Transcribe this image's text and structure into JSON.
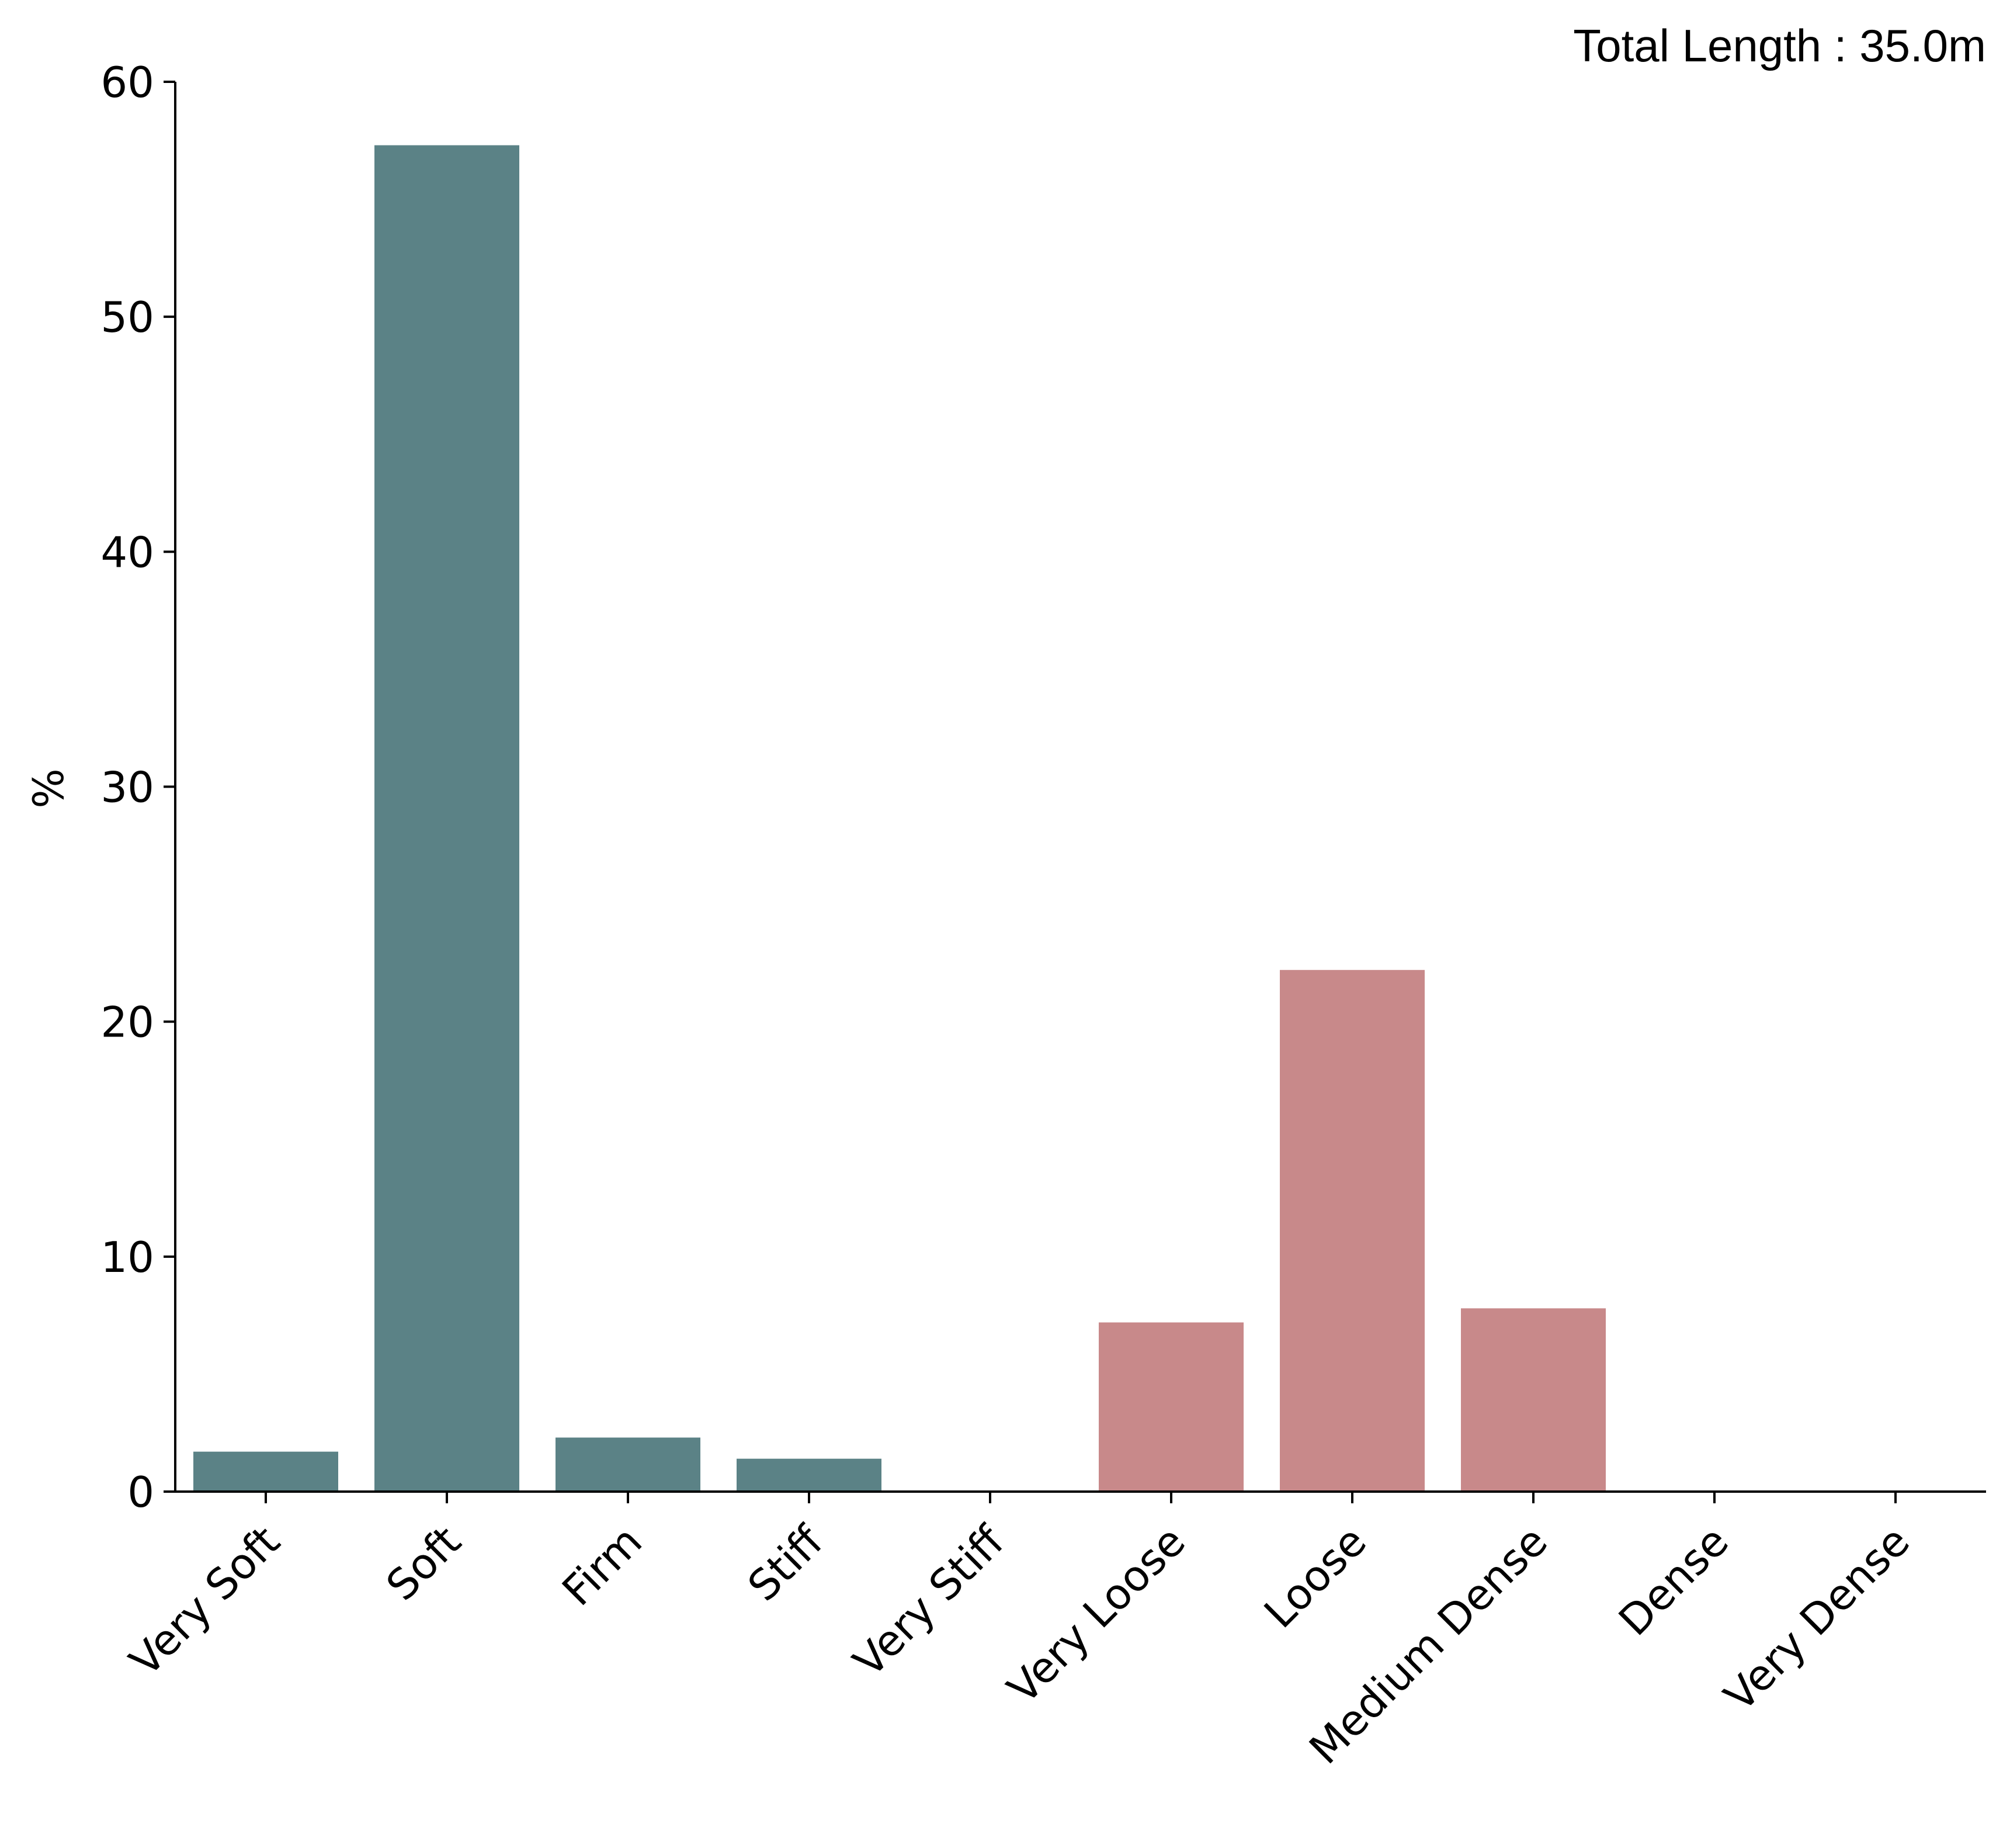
{
  "chart_data": {
    "type": "bar",
    "annotation": "Total Length : 35.0m",
    "xlabel": "",
    "ylabel": "%",
    "ylim": [
      0,
      60
    ],
    "yticks": [
      "0",
      "10",
      "20",
      "30",
      "40",
      "50",
      "60"
    ],
    "grid": false,
    "legend": "none",
    "categories": [
      "Very Soft",
      "Soft",
      "Firm",
      "Stiff",
      "Very Stiff",
      "Very Loose",
      "Loose",
      "Medium Dense",
      "Dense",
      "Very Dense"
    ],
    "values": [
      1.7,
      57.3,
      2.3,
      1.4,
      0,
      7.2,
      22.2,
      7.8,
      0,
      0
    ],
    "bar_colors": [
      "#5b8286",
      "#5b8286",
      "#5b8286",
      "#5b8286",
      "#5b8286",
      "#c8898a",
      "#c8898a",
      "#c8898a",
      "#c8898a",
      "#c8898a"
    ]
  }
}
